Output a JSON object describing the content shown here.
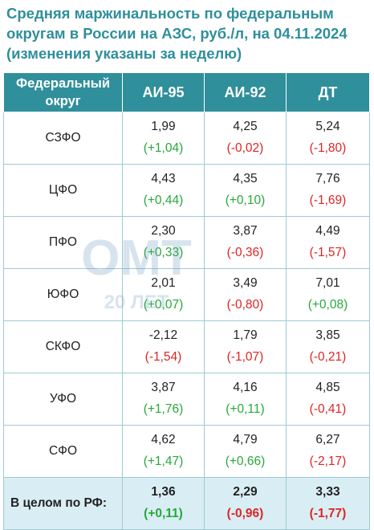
{
  "title_lines": [
    "Средняя маржинальность по федеральным",
    "округам в России на АЗС, руб./л, на 04.11.2024",
    "(изменения указаны за неделю)"
  ],
  "header": {
    "region_line1": "Федеральный",
    "region_line2": "округ",
    "ai95": "АИ-95",
    "ai92": "АИ-92",
    "dt": "ДТ"
  },
  "watermark": {
    "logo": "OMT",
    "years": "20 ЛЕТ"
  },
  "chart_data": {
    "type": "table",
    "columns": [
      "Федеральный округ",
      "АИ-95",
      "АИ-92",
      "ДТ"
    ],
    "rows": [
      {
        "region": "СЗФО",
        "ai95": {
          "value": "1,99",
          "change": "(+1,04)"
        },
        "ai92": {
          "value": "4,25",
          "change": "(-0,02)"
        },
        "dt": {
          "value": "5,24",
          "change": "(-1,80)"
        }
      },
      {
        "region": "ЦФО",
        "ai95": {
          "value": "4,43",
          "change": "(+0,44)"
        },
        "ai92": {
          "value": "4,35",
          "change": "(+0,10)"
        },
        "dt": {
          "value": "7,76",
          "change": "(-1,69)"
        }
      },
      {
        "region": "ПФО",
        "ai95": {
          "value": "2,30",
          "change": "(+0,33)"
        },
        "ai92": {
          "value": "3,87",
          "change": "(-0,36)"
        },
        "dt": {
          "value": "4,49",
          "change": "(-1,57)"
        }
      },
      {
        "region": "ЮФО",
        "ai95": {
          "value": "2,01",
          "change": "(+0,07)"
        },
        "ai92": {
          "value": "3,49",
          "change": "(-0,80)"
        },
        "dt": {
          "value": "7,01",
          "change": "(+0,08)"
        }
      },
      {
        "region": "СКФО",
        "ai95": {
          "value": "-2,12",
          "change": "(-1,54)"
        },
        "ai92": {
          "value": "1,79",
          "change": "(-1,07)"
        },
        "dt": {
          "value": "3,85",
          "change": "(-0,21)"
        }
      },
      {
        "region": "УФО",
        "ai95": {
          "value": "3,87",
          "change": "(+1,76)"
        },
        "ai92": {
          "value": "4,16",
          "change": "(+0,11)"
        },
        "dt": {
          "value": "4,85",
          "change": "(-0,41)"
        }
      },
      {
        "region": "СФО",
        "ai95": {
          "value": "4,62",
          "change": "(+1,47)"
        },
        "ai92": {
          "value": "4,79",
          "change": "(+0,66)"
        },
        "dt": {
          "value": "6,27",
          "change": "(-2,17)"
        }
      }
    ],
    "total": {
      "region": "В целом по РФ:",
      "ai95": {
        "value": "1,36",
        "change": "(+0,11)"
      },
      "ai92": {
        "value": "2,29",
        "change": "(-0,96)"
      },
      "dt": {
        "value": "3,33",
        "change": "(-1,77)"
      }
    },
    "colors": {
      "header_bg": "#2f8f9b",
      "title": "#2f8f9b",
      "positive": "#27a83a",
      "negative": "#e02424",
      "total_bg": "#d9eef4",
      "border": "#9ec9d2"
    }
  }
}
